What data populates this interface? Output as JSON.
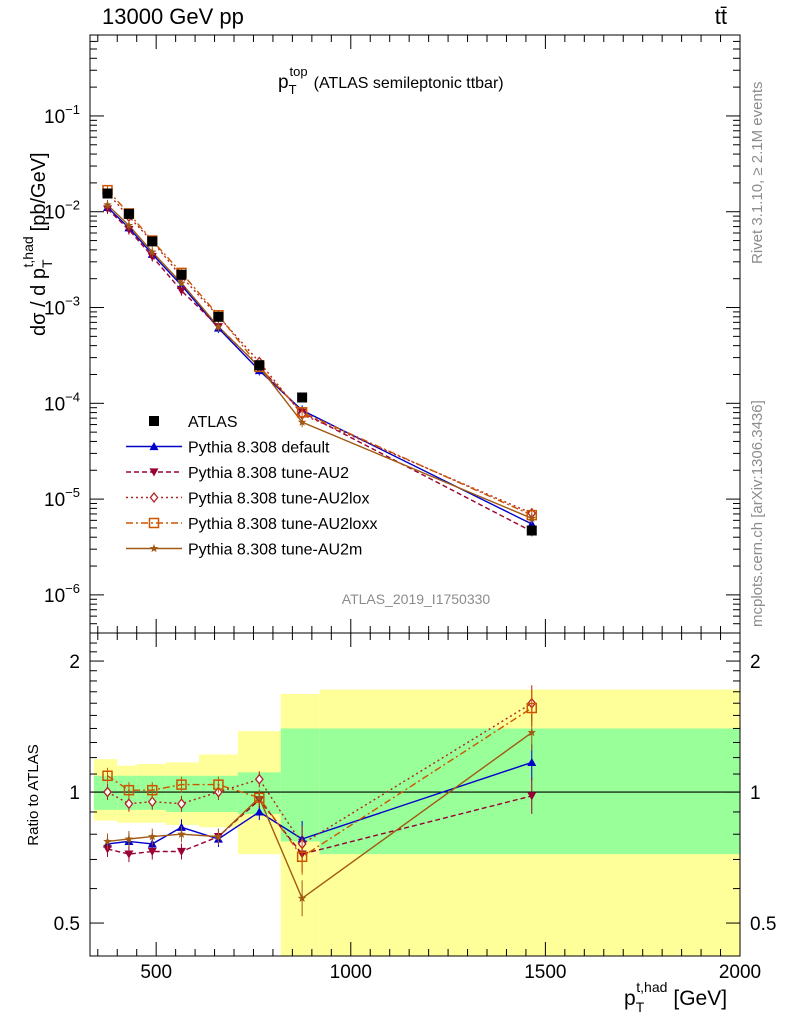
{
  "header": {
    "energy_label": "13000 GeV pp",
    "process_label": "tt̄"
  },
  "chart_data": [
    {
      "type": "line",
      "title": "p",
      "title_sup": "top",
      "title_sub": "T",
      "title_rest": "(ATLAS semileptonic ttbar)",
      "ylabel": "dσ / d p",
      "ylabel_sup": "t,had",
      "ylabel_sub": "T",
      "ylabel_unit": "[pb/GeV]",
      "yscale": "log",
      "xlim": [
        330,
        2000
      ],
      "ylim": [
        4e-07,
        0.7
      ],
      "y_ticks": [
        {
          "value": 0.1,
          "base": "10",
          "exp": "−1"
        },
        {
          "value": 0.01,
          "base": "10",
          "exp": "−2"
        },
        {
          "value": 0.001,
          "base": "10",
          "exp": "−3"
        },
        {
          "value": 0.0001,
          "base": "10",
          "exp": "−4"
        },
        {
          "value": 1e-05,
          "base": "10",
          "exp": "−5"
        },
        {
          "value": 1e-06,
          "base": "10",
          "exp": "−6"
        }
      ],
      "grid": false,
      "legend_position": "bottom-left",
      "analysis_label": "ATLAS_2019_I1750330",
      "data": {
        "name": "ATLAS",
        "x": [
          375,
          430,
          490,
          565,
          660,
          765,
          875,
          1465
        ],
        "y": [
          0.0155,
          0.0095,
          0.0049,
          0.0022,
          0.0008,
          0.00025,
          0.000115,
          4.7e-06
        ]
      },
      "series": [
        {
          "name": "Pythia 8.308 default",
          "color": "#0000cc",
          "dash": "",
          "marker": "triangle-up",
          "x": [
            375,
            430,
            490,
            565,
            660,
            765,
            875,
            1465
          ],
          "y": [
            0.0111,
            0.0068,
            0.0036,
            0.0017,
            0.00061,
            0.00022,
            8.45e-05,
            5.5e-06
          ]
        },
        {
          "name": "Pythia 8.308 tune-AU2",
          "color": "#990033",
          "dash": "5,3",
          "marker": "triangle-down",
          "x": [
            375,
            430,
            490,
            565,
            660,
            765,
            875,
            1465
          ],
          "y": [
            0.0107,
            0.0065,
            0.0034,
            0.0015,
            0.00063,
            0.00024,
            8.05e-05,
            4.6e-06
          ]
        },
        {
          "name": "Pythia 8.308 tune-AU2lox",
          "color": "#b22222",
          "dash": "2,3",
          "marker": "diamond-open",
          "x": [
            375,
            430,
            490,
            565,
            660,
            765,
            875,
            1465
          ],
          "y": [
            0.0156,
            0.0089,
            0.0049,
            0.0021,
            0.00081,
            0.00027,
            7.65e-05,
            7.1e-06
          ]
        },
        {
          "name": "Pythia 8.308 tune-AU2loxx",
          "color": "#cc5500",
          "dash": "7,3,2,3",
          "marker": "square-open",
          "x": [
            375,
            430,
            490,
            565,
            660,
            765,
            875,
            1465
          ],
          "y": [
            0.0168,
            0.0096,
            0.005,
            0.0023,
            0.00083,
            0.00024,
            8.05e-05,
            6.8e-06
          ]
        },
        {
          "name": "Pythia 8.308 tune-AU2m",
          "color": "#a05a14",
          "dash": "",
          "marker": "star",
          "x": [
            375,
            430,
            490,
            565,
            660,
            765,
            875,
            1465
          ],
          "y": [
            0.0118,
            0.0072,
            0.0038,
            0.0018,
            0.00063,
            0.00024,
            6.35e-05,
            6.3e-06
          ]
        }
      ]
    },
    {
      "type": "line",
      "ylabel": "Ratio to ATLAS",
      "xlabel": "p",
      "xlabel_sup": "t,had",
      "xlabel_sub": "T",
      "xlabel_unit": "[GeV]",
      "xlim": [
        330,
        2000
      ],
      "ylim": [
        0.42,
        2.32
      ],
      "y_ticks": [
        "0.5",
        "1",
        "2"
      ],
      "y_tick_values": [
        0.5,
        1,
        2
      ],
      "x_ticks": [
        "500",
        "1000",
        "1500",
        "2000"
      ],
      "x_tick_values": [
        500,
        1000,
        1500,
        2000
      ],
      "reference_line": 1,
      "bands": {
        "bin_edges": [
          340,
          400,
          450,
          525,
          610,
          710,
          820,
          920,
          2000
        ],
        "outer_lo": [
          0.86,
          0.85,
          0.85,
          0.84,
          0.83,
          0.72,
          0.4,
          0.4
        ],
        "outer_hi": [
          1.19,
          1.15,
          1.16,
          1.17,
          1.22,
          1.38,
          1.68,
          1.72
        ],
        "inner_lo": [
          0.91,
          0.91,
          0.91,
          0.9,
          0.9,
          0.89,
          0.77,
          0.72
        ],
        "inner_hi": [
          1.09,
          1.09,
          1.09,
          1.09,
          1.09,
          1.11,
          1.4,
          1.4
        ],
        "outer_color": "#ffff99",
        "inner_color": "#99ff99"
      },
      "series": [
        {
          "name": "Pythia 8.308 default",
          "x": [
            375,
            430,
            490,
            565,
            660,
            765,
            875,
            1465
          ],
          "y": [
            0.76,
            0.77,
            0.76,
            0.83,
            0.78,
            0.9,
            0.78,
            1.17
          ]
        },
        {
          "name": "Pythia 8.308 tune-AU2",
          "x": [
            375,
            430,
            490,
            565,
            660,
            765,
            875,
            1465
          ],
          "y": [
            0.74,
            0.72,
            0.73,
            0.73,
            0.79,
            0.96,
            0.72,
            0.98
          ]
        },
        {
          "name": "Pythia 8.308 tune-AU2lox",
          "x": [
            375,
            430,
            490,
            565,
            660,
            765,
            875,
            1465
          ],
          "y": [
            1.0,
            0.94,
            0.95,
            0.94,
            1.0,
            1.07,
            0.76,
            1.6
          ]
        },
        {
          "name": "Pythia 8.308 tune-AU2loxx",
          "x": [
            375,
            430,
            490,
            565,
            660,
            765,
            875,
            1465
          ],
          "y": [
            1.09,
            1.01,
            1.01,
            1.04,
            1.04,
            0.97,
            0.71,
            1.56
          ]
        },
        {
          "name": "Pythia 8.308 tune-AU2m",
          "x": [
            375,
            430,
            490,
            565,
            660,
            765,
            875,
            1465
          ],
          "y": [
            0.77,
            0.78,
            0.79,
            0.8,
            0.79,
            0.97,
            0.57,
            1.37
          ]
        }
      ]
    }
  ],
  "side_labels": {
    "rivet": "Rivet 3.1.10, ≥ 2.1M events",
    "mcplots": "mcplots.cern.ch [arXiv:1306.3436]"
  }
}
